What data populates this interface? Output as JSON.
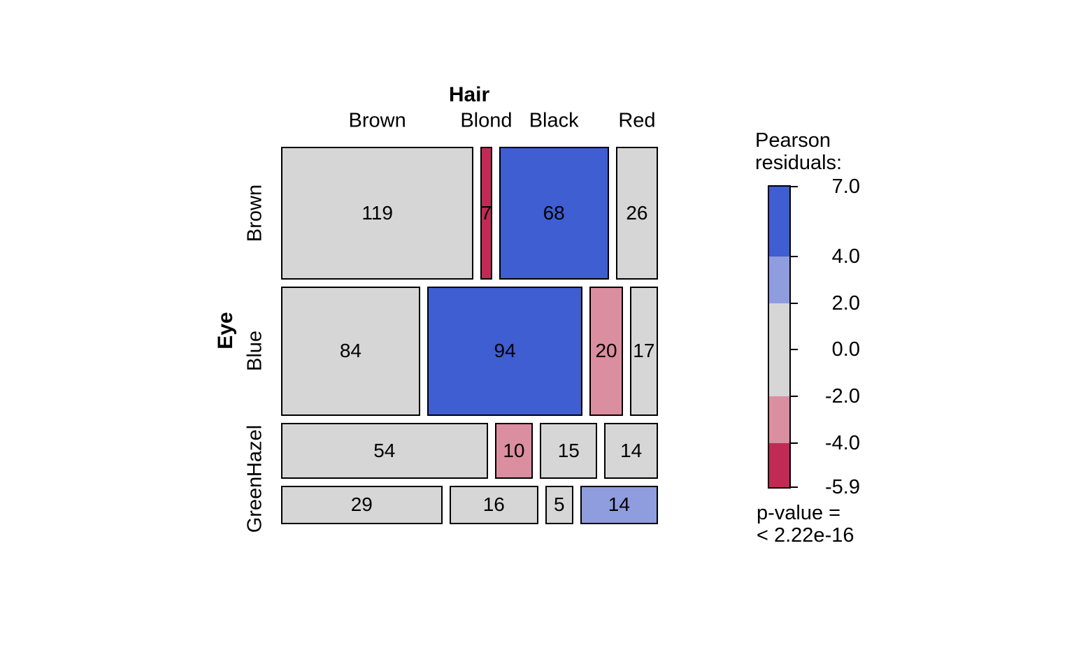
{
  "chart_data": {
    "type": "mosaic",
    "title_x": "Hair",
    "title_y": "Eye",
    "x_categories": [
      "Brown",
      "Blond",
      "Black",
      "Red"
    ],
    "y_categories": [
      "Brown",
      "Blue",
      "Hazel",
      "Green"
    ],
    "rows": [
      {
        "label": "Brown",
        "counts": [
          119,
          7,
          68,
          26
        ],
        "residual_classes": [
          "neutral",
          "neg_strong",
          "pos_strong",
          "neutral"
        ]
      },
      {
        "label": "Blue",
        "counts": [
          84,
          94,
          20,
          17
        ],
        "residual_classes": [
          "neutral",
          "pos_strong",
          "neg_mild",
          "neutral"
        ]
      },
      {
        "label": "Hazel",
        "counts": [
          54,
          10,
          15,
          14
        ],
        "residual_classes": [
          "neutral",
          "neg_mild",
          "neutral",
          "neutral"
        ]
      },
      {
        "label": "Green",
        "counts": [
          29,
          16,
          5,
          14
        ],
        "residual_classes": [
          "neutral",
          "neutral",
          "neutral",
          "pos_mild"
        ]
      }
    ],
    "colors": {
      "neutral": "#D6D6D6",
      "pos_strong": "#3E5ED1",
      "pos_mild": "#8F9CDE",
      "neg_mild": "#DB8E9F",
      "neg_strong": "#C22A56"
    },
    "legend": {
      "title_lines": [
        "Pearson",
        "residuals:"
      ],
      "ticks": [
        "7.0",
        "4.0",
        "2.0",
        "0.0",
        "-2.0",
        "-4.0",
        "-5.9"
      ],
      "tick_values": [
        7.0,
        4.0,
        2.0,
        0.0,
        -2.0,
        -4.0,
        -5.9
      ],
      "range": [
        -5.9,
        7.0
      ],
      "segments": [
        {
          "from": 4.0,
          "to": 7.0,
          "class": "pos_strong"
        },
        {
          "from": 2.0,
          "to": 4.0,
          "class": "pos_mild"
        },
        {
          "from": -2.0,
          "to": 2.0,
          "class": "neutral"
        },
        {
          "from": -4.0,
          "to": -2.0,
          "class": "neg_mild"
        },
        {
          "from": -5.9,
          "to": -4.0,
          "class": "neg_strong"
        }
      ],
      "p_value_lines": [
        "p-value =",
        "< 2.22e-16"
      ]
    }
  }
}
